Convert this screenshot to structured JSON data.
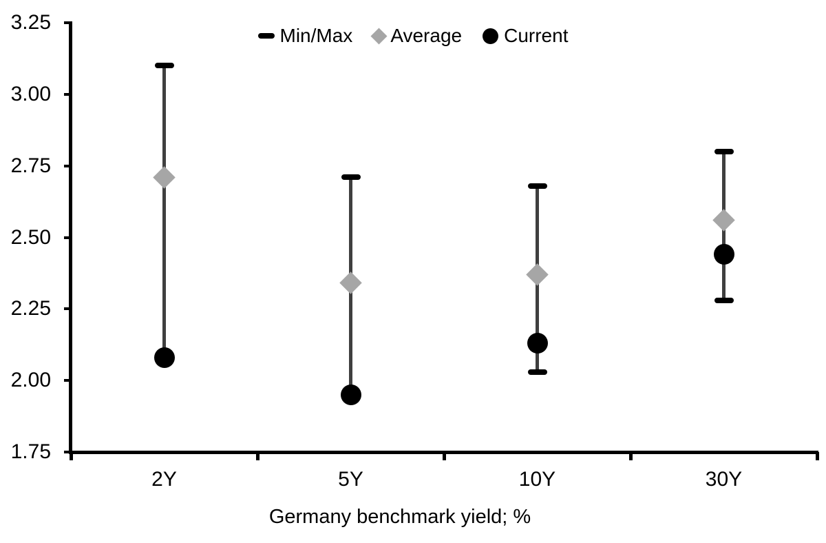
{
  "chart_data": {
    "type": "scatter",
    "title": "",
    "xlabel": "Germany benchmark yield; %",
    "ylabel": "",
    "categories": [
      "2Y",
      "5Y",
      "10Y",
      "30Y"
    ],
    "ylim": [
      1.75,
      3.25
    ],
    "y_tick_labels": [
      "3.25",
      "3.00",
      "2.75",
      "2.50",
      "2.25",
      "2.00",
      "1.75"
    ],
    "grid": "off",
    "legend_position": "top-center",
    "legend": [
      {
        "label": "Min/Max",
        "marker": "dash-icon",
        "color": "#000000"
      },
      {
        "label": "Average",
        "marker": "diamond-icon",
        "color": "#a6a6a6"
      },
      {
        "label": "Current",
        "marker": "circle-icon",
        "color": "#000000"
      }
    ],
    "series": [
      {
        "name": "Min/Max",
        "type": "range",
        "max": [
          3.1,
          2.71,
          2.68,
          2.8
        ],
        "min": [
          2.08,
          1.95,
          2.03,
          2.28
        ],
        "min_cap_visible": [
          false,
          false,
          true,
          true
        ]
      },
      {
        "name": "Average",
        "type": "point",
        "values": [
          2.71,
          2.34,
          2.37,
          2.56
        ]
      },
      {
        "name": "Current",
        "type": "point",
        "values": [
          2.08,
          1.95,
          2.13,
          2.44
        ]
      }
    ],
    "colors": {
      "min_max": "#000000",
      "average": "#a6a6a6",
      "current": "#000000",
      "stem": "#3f3f3f",
      "axis": "#000000"
    }
  }
}
